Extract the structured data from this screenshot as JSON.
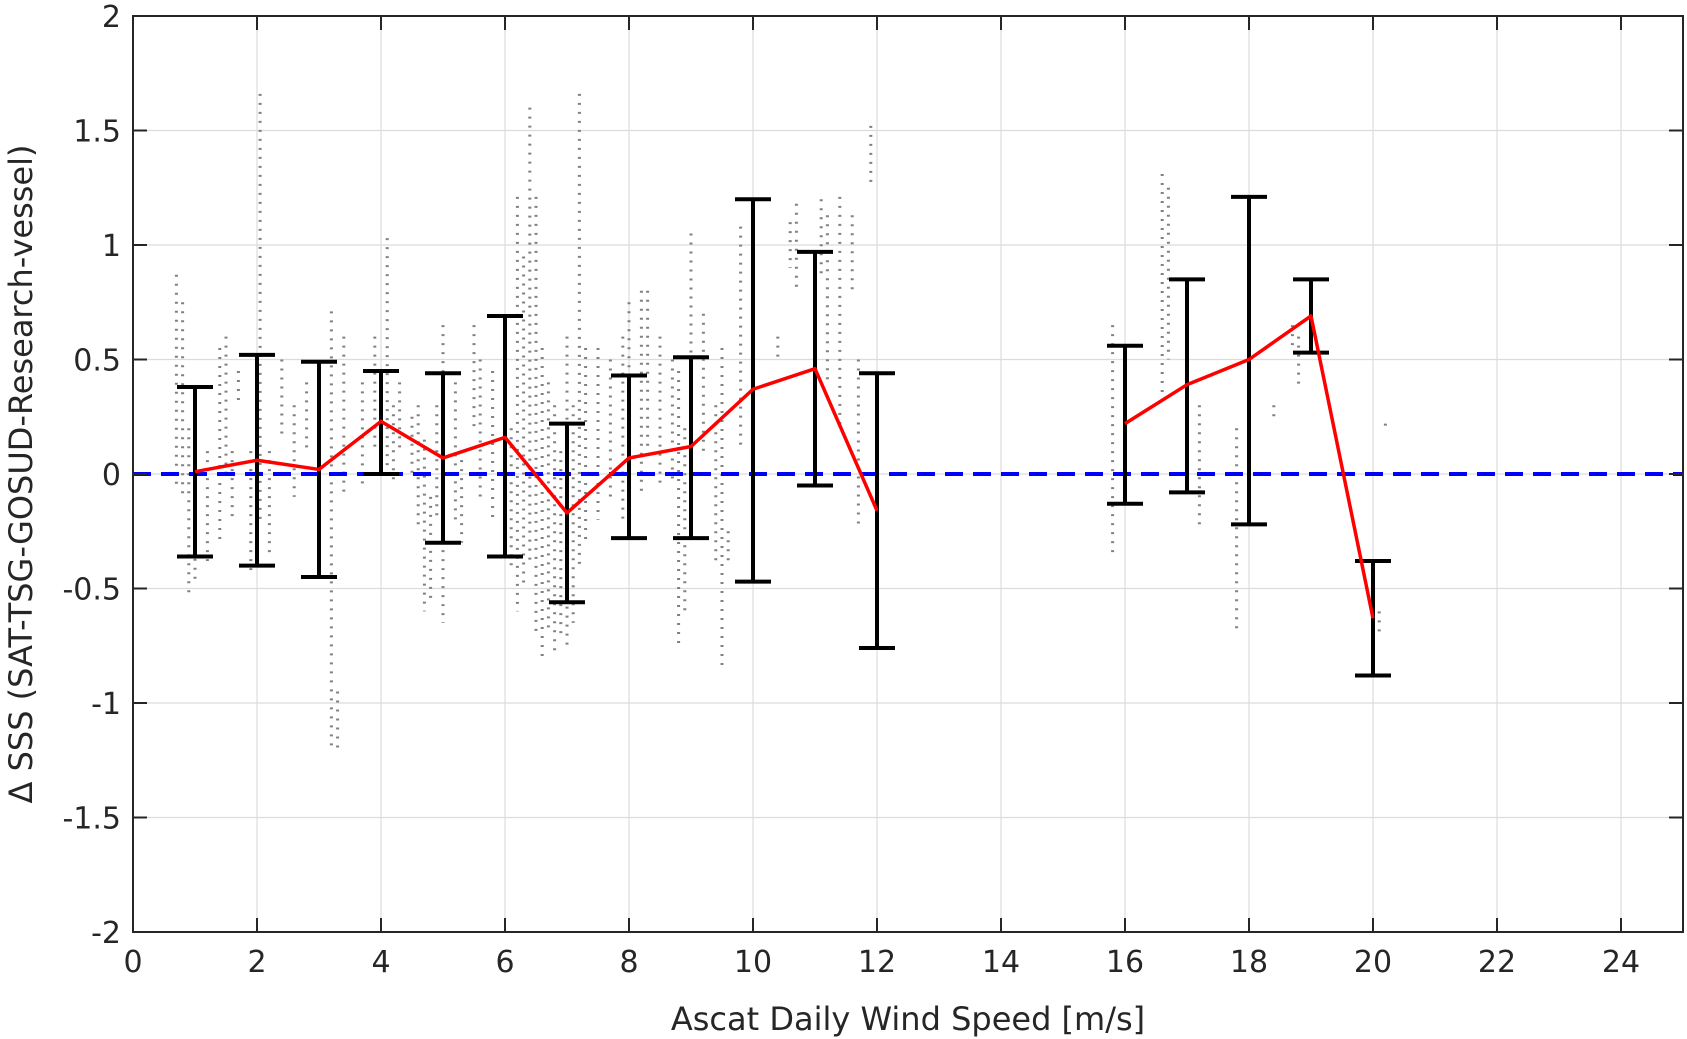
{
  "chart_data": {
    "type": "line",
    "xlabel": "Ascat Daily Wind Speed [m/s]",
    "ylabel": "Δ SSS (SAT-TSG-GOSUD-Research-vessel)",
    "xlim": [
      0,
      25
    ],
    "ylim": [
      -2,
      2
    ],
    "xticks": [
      0,
      2,
      4,
      6,
      8,
      10,
      12,
      14,
      16,
      18,
      20,
      22,
      24
    ],
    "yticks": [
      -2,
      -1.5,
      -1,
      -0.5,
      0,
      0.5,
      1,
      1.5,
      2
    ],
    "ytick_labels": [
      "-2",
      "-1.5",
      "-1",
      "-0.5",
      "0",
      "0.5",
      "1",
      "1.5",
      "2"
    ],
    "grid": true,
    "reference_line": {
      "y": 0,
      "style": "dashed",
      "color": "#0000ff"
    },
    "series": [
      {
        "type": "line_errorbar",
        "color": "#ff0000",
        "errorbar_color": "#000000",
        "points": [
          {
            "x": 1,
            "y": 0.01,
            "lo": -0.36,
            "hi": 0.38
          },
          {
            "x": 2,
            "y": 0.06,
            "lo": -0.4,
            "hi": 0.52
          },
          {
            "x": 3,
            "y": 0.02,
            "lo": -0.45,
            "hi": 0.49
          },
          {
            "x": 4,
            "y": 0.23,
            "lo": 0.0,
            "hi": 0.45
          },
          {
            "x": 5,
            "y": 0.07,
            "lo": -0.3,
            "hi": 0.44
          },
          {
            "x": 6,
            "y": 0.16,
            "lo": -0.36,
            "hi": 0.69
          },
          {
            "x": 7,
            "y": -0.17,
            "lo": -0.56,
            "hi": 0.22
          },
          {
            "x": 8,
            "y": 0.07,
            "lo": -0.28,
            "hi": 0.43
          },
          {
            "x": 9,
            "y": 0.12,
            "lo": -0.28,
            "hi": 0.51
          },
          {
            "x": 10,
            "y": 0.37,
            "lo": -0.47,
            "hi": 1.2
          },
          {
            "x": 11,
            "y": 0.46,
            "lo": -0.05,
            "hi": 0.97
          },
          {
            "x": 12,
            "y": -0.16,
            "lo": -0.76,
            "hi": 0.44
          },
          {
            "x": 16,
            "y": 0.22,
            "lo": -0.13,
            "hi": 0.56
          },
          {
            "x": 17,
            "y": 0.39,
            "lo": -0.08,
            "hi": 0.85
          },
          {
            "x": 18,
            "y": 0.5,
            "lo": -0.22,
            "hi": 1.21
          },
          {
            "x": 19,
            "y": 0.69,
            "lo": 0.53,
            "hi": 0.85
          },
          {
            "x": 20,
            "y": -0.63,
            "lo": -0.88,
            "hi": -0.38
          }
        ],
        "line_segments": [
          [
            0,
            11
          ],
          [
            12,
            16
          ]
        ]
      },
      {
        "type": "scatter",
        "color": "#808080",
        "clusters": [
          {
            "x": 0.7,
            "lo": -0.05,
            "hi": 0.87
          },
          {
            "x": 0.8,
            "lo": -0.1,
            "hi": 0.75
          },
          {
            "x": 0.9,
            "lo": -0.52,
            "hi": 0.2
          },
          {
            "x": 1.0,
            "lo": -0.48,
            "hi": 0.18
          },
          {
            "x": 1.2,
            "lo": -0.38,
            "hi": 0.1
          },
          {
            "x": 1.4,
            "lo": -0.3,
            "hi": 0.55
          },
          {
            "x": 1.5,
            "lo": 0.0,
            "hi": 0.6
          },
          {
            "x": 1.6,
            "lo": -0.2,
            "hi": 0.1
          },
          {
            "x": 1.7,
            "lo": 0.3,
            "hi": 0.45
          },
          {
            "x": 1.9,
            "lo": -0.45,
            "hi": 0.1
          },
          {
            "x": 2.05,
            "lo": -0.2,
            "hi": 1.66
          },
          {
            "x": 2.2,
            "lo": -0.35,
            "hi": 0.1
          },
          {
            "x": 2.4,
            "lo": 0.15,
            "hi": 0.5
          },
          {
            "x": 2.6,
            "lo": -0.1,
            "hi": 0.3
          },
          {
            "x": 2.8,
            "lo": 0.1,
            "hi": 0.4
          },
          {
            "x": 3.0,
            "lo": -0.4,
            "hi": 0.1
          },
          {
            "x": 3.2,
            "lo": -1.2,
            "hi": 0.71
          },
          {
            "x": 3.3,
            "lo": -1.2,
            "hi": -0.95
          },
          {
            "x": 3.4,
            "lo": -0.1,
            "hi": 0.6
          },
          {
            "x": 3.7,
            "lo": -0.05,
            "hi": 0.4
          },
          {
            "x": 3.9,
            "lo": 0.1,
            "hi": 0.6
          },
          {
            "x": 4.1,
            "lo": 0.0,
            "hi": 1.03
          },
          {
            "x": 4.2,
            "lo": -0.05,
            "hi": 0.3
          },
          {
            "x": 4.3,
            "lo": 0.1,
            "hi": 0.4
          },
          {
            "x": 4.5,
            "lo": 0.0,
            "hi": 0.25
          },
          {
            "x": 4.6,
            "lo": -0.25,
            "hi": 0.3
          },
          {
            "x": 4.7,
            "lo": -0.6,
            "hi": 0.15
          },
          {
            "x": 4.8,
            "lo": -0.55,
            "hi": -0.1
          },
          {
            "x": 4.9,
            "lo": -0.2,
            "hi": 0.3
          },
          {
            "x": 5.0,
            "lo": -0.65,
            "hi": 0.65
          },
          {
            "x": 5.2,
            "lo": -0.2,
            "hi": 0.4
          },
          {
            "x": 5.3,
            "lo": -0.3,
            "hi": 0.1
          },
          {
            "x": 5.5,
            "lo": 0.2,
            "hi": 0.65
          },
          {
            "x": 5.6,
            "lo": -0.1,
            "hi": 0.5
          },
          {
            "x": 5.8,
            "lo": -0.2,
            "hi": 0.45
          },
          {
            "x": 6.0,
            "lo": -0.3,
            "hi": 0.6
          },
          {
            "x": 6.1,
            "lo": -0.4,
            "hi": 0.2
          },
          {
            "x": 6.2,
            "lo": -0.6,
            "hi": 1.21
          },
          {
            "x": 6.3,
            "lo": -0.5,
            "hi": 0.95
          },
          {
            "x": 6.4,
            "lo": -0.4,
            "hi": 1.6
          },
          {
            "x": 6.5,
            "lo": -0.7,
            "hi": 1.21
          },
          {
            "x": 6.6,
            "lo": -0.8,
            "hi": 0.55
          },
          {
            "x": 6.7,
            "lo": -0.7,
            "hi": 0.4
          },
          {
            "x": 6.8,
            "lo": -0.8,
            "hi": 0.3
          },
          {
            "x": 6.9,
            "lo": -0.7,
            "hi": 0.1
          },
          {
            "x": 7.0,
            "lo": -0.75,
            "hi": 0.6
          },
          {
            "x": 7.1,
            "lo": -0.65,
            "hi": 0.3
          },
          {
            "x": 7.2,
            "lo": -0.4,
            "hi": 1.66
          },
          {
            "x": 7.3,
            "lo": -0.3,
            "hi": 0.55
          },
          {
            "x": 7.5,
            "lo": -0.2,
            "hi": 0.55
          },
          {
            "x": 7.7,
            "lo": -0.1,
            "hi": 0.5
          },
          {
            "x": 7.9,
            "lo": -0.2,
            "hi": 0.6
          },
          {
            "x": 8.0,
            "lo": 0.0,
            "hi": 0.75
          },
          {
            "x": 8.2,
            "lo": -0.1,
            "hi": 0.8
          },
          {
            "x": 8.3,
            "lo": 0.1,
            "hi": 0.8
          },
          {
            "x": 8.5,
            "lo": -0.05,
            "hi": 0.6
          },
          {
            "x": 8.7,
            "lo": -0.05,
            "hi": 0.5
          },
          {
            "x": 8.8,
            "lo": -0.76,
            "hi": 0.45
          },
          {
            "x": 8.9,
            "lo": -0.6,
            "hi": 0.2
          },
          {
            "x": 9.0,
            "lo": 0.0,
            "hi": 1.05
          },
          {
            "x": 9.2,
            "lo": 0.1,
            "hi": 0.7
          },
          {
            "x": 9.4,
            "lo": -0.4,
            "hi": 0.3
          },
          {
            "x": 9.5,
            "lo": -0.86,
            "hi": 0.55
          },
          {
            "x": 9.6,
            "lo": -0.4,
            "hi": -0.25
          },
          {
            "x": 9.8,
            "lo": 0.1,
            "hi": 1.08
          },
          {
            "x": 10.0,
            "lo": 0.2,
            "hi": 0.62
          },
          {
            "x": 10.4,
            "lo": 0.5,
            "hi": 0.6
          },
          {
            "x": 10.6,
            "lo": 0.9,
            "hi": 1.1
          },
          {
            "x": 10.7,
            "lo": 0.8,
            "hi": 1.18
          },
          {
            "x": 11.0,
            "lo": 0.3,
            "hi": 0.9
          },
          {
            "x": 11.1,
            "lo": 0.85,
            "hi": 1.2
          },
          {
            "x": 11.2,
            "lo": 0.4,
            "hi": 1.13
          },
          {
            "x": 11.4,
            "lo": 0.2,
            "hi": 1.21
          },
          {
            "x": 11.6,
            "lo": 0.8,
            "hi": 1.13
          },
          {
            "x": 11.7,
            "lo": -0.24,
            "hi": 0.5
          },
          {
            "x": 11.9,
            "lo": 1.25,
            "hi": 1.52
          },
          {
            "x": 15.8,
            "lo": -0.35,
            "hi": 0.65
          },
          {
            "x": 16.6,
            "lo": 0.3,
            "hi": 1.31
          },
          {
            "x": 16.7,
            "lo": 0.5,
            "hi": 1.25
          },
          {
            "x": 17.2,
            "lo": -0.24,
            "hi": 0.3
          },
          {
            "x": 17.8,
            "lo": -0.7,
            "hi": 0.2
          },
          {
            "x": 18.4,
            "lo": 0.24,
            "hi": 0.3
          },
          {
            "x": 18.7,
            "lo": 0.55,
            "hi": 0.65
          },
          {
            "x": 18.8,
            "lo": 0.38,
            "hi": 0.6
          },
          {
            "x": 20.1,
            "lo": -0.7,
            "hi": -0.6
          },
          {
            "x": 20.2,
            "lo": 0.2,
            "hi": 0.22
          }
        ]
      }
    ]
  }
}
